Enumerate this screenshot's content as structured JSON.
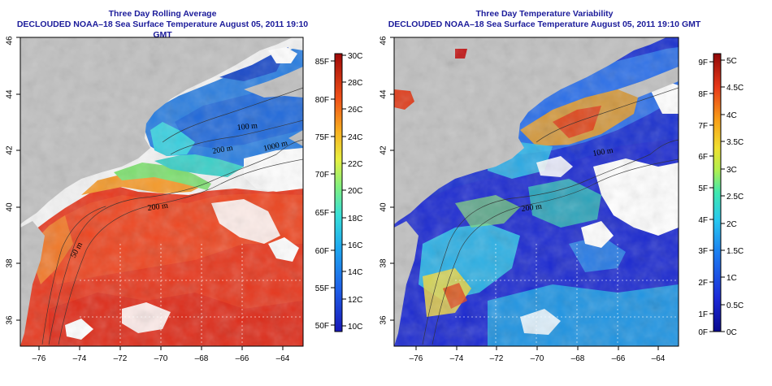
{
  "panels": [
    {
      "title_line1": "Three Day Rolling Average",
      "title_line2": "DECLOUDED NOAA–18 Sea Surface Temperature August 05, 2011 19:10 GMT",
      "x_ticks": [
        "–76",
        "–74",
        "–72",
        "–70",
        "–68",
        "–66",
        "–64"
      ],
      "y_ticks": [
        "36",
        "38",
        "40",
        "42",
        "44",
        "46"
      ],
      "contour_labels": [
        "100 m",
        "200 m",
        "200 m",
        "1000 m",
        "50 m"
      ],
      "colorbar_c": [
        "30C",
        "28C",
        "26C",
        "24C",
        "22C",
        "20C",
        "18C",
        "16C",
        "14C",
        "12C",
        "10C"
      ],
      "colorbar_f": [
        "85F",
        "80F",
        "75F",
        "70F",
        "65F",
        "60F",
        "55F",
        "50F"
      ],
      "colors": {
        "land": "#c0c0c0",
        "warm": "#e0301c",
        "cool": "#2a7ee0"
      }
    },
    {
      "title_line1": "Three Day Temperature Variability",
      "title_line2": "DECLOUDED NOAA–18 Sea Surface Temperature August 05, 2011 19:10 GMT",
      "x_ticks": [
        "–76",
        "–74",
        "–72",
        "–70",
        "–68",
        "–66",
        "–64"
      ],
      "y_ticks": [
        "36",
        "38",
        "40",
        "42",
        "44",
        "46"
      ],
      "contour_labels": [
        "200 m",
        "100 m"
      ],
      "colorbar_c": [
        "5C",
        "4.5C",
        "4C",
        "3.5C",
        "3C",
        "2.5C",
        "2C",
        "1.5C",
        "1C",
        "0.5C",
        "0C"
      ],
      "colorbar_f": [
        "9F",
        "8F",
        "7F",
        "6F",
        "5F",
        "4F",
        "3F",
        "2F",
        "1F",
        "0F"
      ],
      "colors": {
        "land": "#c0c0c0",
        "low": "#1020c8",
        "high": "#d02010"
      }
    }
  ]
}
